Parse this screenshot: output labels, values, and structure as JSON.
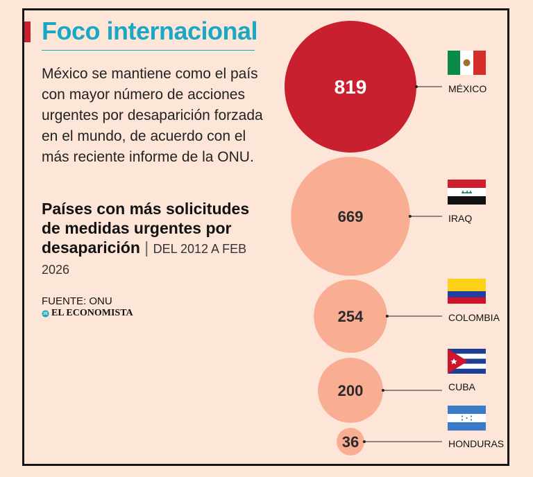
{
  "header": {
    "title": "Foco internacional",
    "intro": "México se mantiene como el país con mayor número de acciones urgentes por desaparición forzada en el mundo, de acuerdo con el más reciente informe de la ONU.",
    "subtitle_bold": "Países con más solicitudes de medidas urgentes por desaparición",
    "subtitle_separator": "|",
    "subtitle_range": "DEL 2012 A FEB 2026",
    "source": "FUENTE: ONU",
    "brand": "EL ECONOMISTA"
  },
  "colors": {
    "highlight": "#c8202e",
    "bubble": "#f9ae93",
    "accent": "#1aa8c4",
    "background": "#fde6d8"
  },
  "chart_data": {
    "type": "bubble",
    "title": "Países con más solicitudes de medidas urgentes por desaparición",
    "categories": [
      "MÉXICO",
      "IRAQ",
      "COLOMBIA",
      "CUBA",
      "HONDURAS"
    ],
    "values": [
      819,
      669,
      254,
      200,
      36
    ],
    "value_labels": [
      "819",
      "669",
      "254",
      "200",
      "36"
    ],
    "flags": [
      "mexico-flag-icon",
      "iraq-flag-icon",
      "colombia-flag-icon",
      "cuba-flag-icon",
      "honduras-flag-icon"
    ],
    "highlighted": "MÉXICO"
  }
}
